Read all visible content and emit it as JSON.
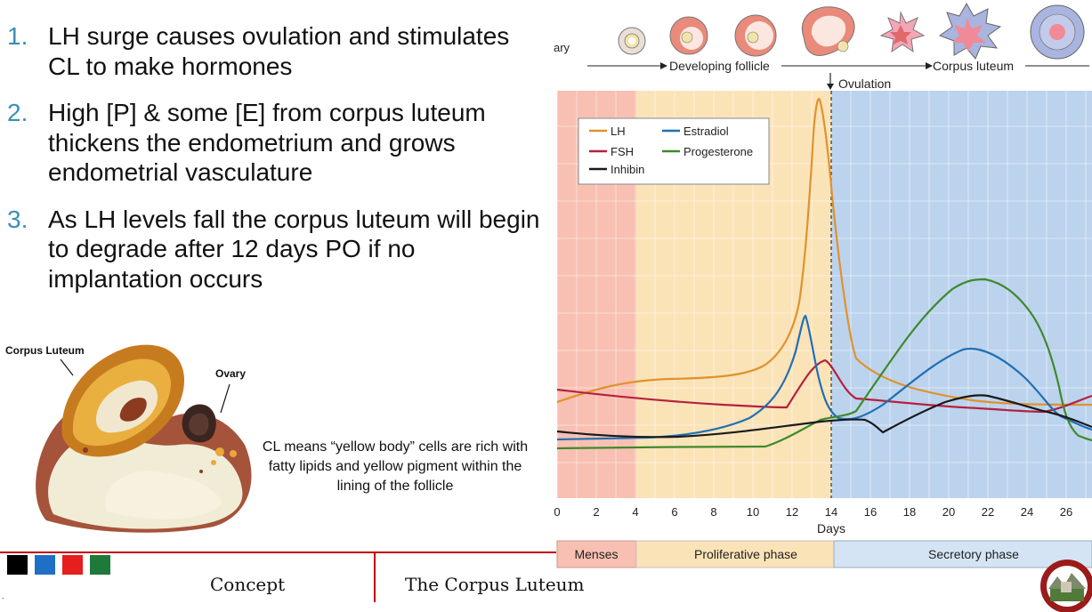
{
  "bullets": [
    {
      "num": "1.",
      "text": "LH surge causes ovulation and stimulates CL to make hormones"
    },
    {
      "num": "2.",
      "text": "High [P] & some [E] from corpus luteum thickens the endometrium and grows endometrial vasculature"
    },
    {
      "num": "3.",
      "text": "As LH levels fall the corpus luteum will begin to degrade after 12 days PO if no implantation occurs"
    }
  ],
  "specimen": {
    "label_cl": "Corpus Luteum",
    "label_ovary": "Ovary"
  },
  "caption": "CL means “yellow body” cells are rich with fatty lipids and yellow pigment within the lining of the follicle",
  "chart": {
    "top_left_label": "ary",
    "developing_follicle": "Developing follicle",
    "corpus_luteum": "Corpus luteum",
    "ovulation": "Ovulation",
    "legend": {
      "lh": "LH",
      "estradiol": "Estradiol",
      "fsh": "FSH",
      "progesterone": "Progesterone",
      "inhibin": "Inhibin"
    },
    "days_label": "Days",
    "phases": {
      "menses": "Menses",
      "proliferative": "Proliferative phase",
      "secretory": "Secretory phase"
    },
    "ticks": [
      "0",
      "2",
      "4",
      "6",
      "8",
      "10",
      "12",
      "14",
      "16",
      "18",
      "20",
      "22",
      "24",
      "26"
    ],
    "colors": {
      "lh": "#e0922c",
      "estradiol": "#1f6fb5",
      "fsh": "#b5213d",
      "progesterone": "#3f8a2a",
      "inhibin": "#1a1a1a"
    }
  },
  "footer": {
    "concept": "Concept",
    "title": "The Corpus Luteum",
    "swatches": [
      "#000000",
      "#1f6fc4",
      "#e61e1e",
      "#1d7a3a"
    ]
  },
  "mark": "-"
}
